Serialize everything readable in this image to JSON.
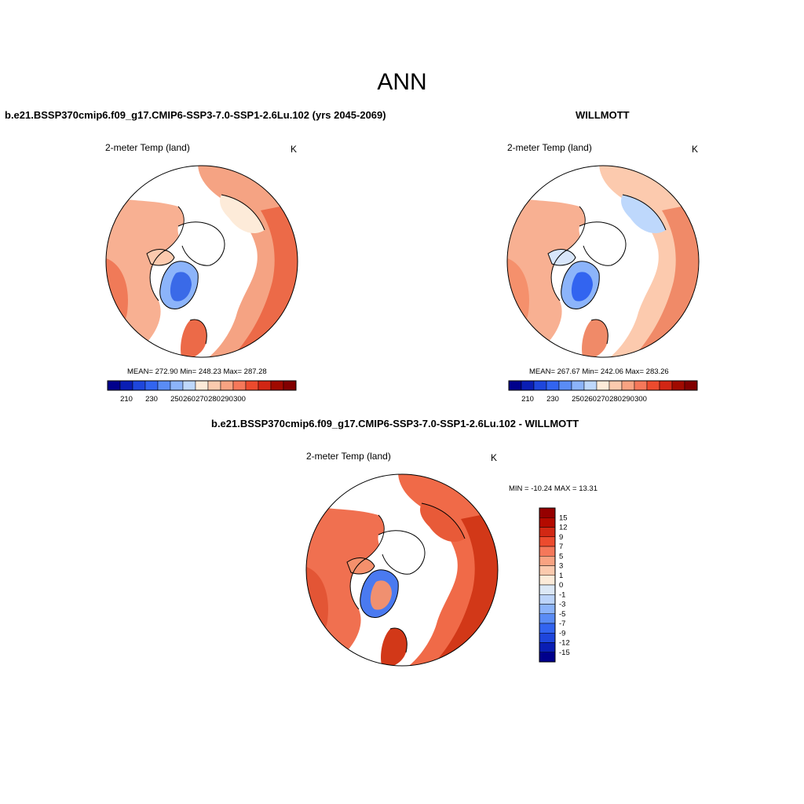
{
  "page_title": "ANN",
  "panels": [
    {
      "id": "model",
      "title": "b.e21.BSSP370cmip6.f09_g17.CMIP6-SSP3-7.0-SSP1-2.6Lu.102 (yrs 2045-2069)",
      "field": "2-meter Temp (land)",
      "units": "K",
      "stats": "MEAN= 272.90   Min= 248.23   Max= 287.28",
      "map_style": "model"
    },
    {
      "id": "obs",
      "title": "WILLMOTT",
      "field": "2-meter Temp (land)",
      "units": "K",
      "stats": "MEAN= 267.67   Min= 242.06   Max= 283.26",
      "map_style": "obs"
    },
    {
      "id": "diff",
      "title": "b.e21.BSSP370cmip6.f09_g17.CMIP6-SSP3-7.0-SSP1-2.6Lu.102 - WILLMOTT",
      "field": "2-meter Temp (land)",
      "units": "K",
      "stats": "MIN = -10.24 MAX =  13.31",
      "map_style": "diff"
    }
  ],
  "abs_colorbar": {
    "colors": [
      "#00008c",
      "#0a1eb4",
      "#1e46dc",
      "#3264f0",
      "#5a8cf5",
      "#8cb4fa",
      "#bed8fc",
      "#fdebd9",
      "#fccaae",
      "#f9a382",
      "#f5785a",
      "#ec4b2e",
      "#d22614",
      "#a00a00",
      "#820000"
    ],
    "tick_labels": [
      "210",
      "230",
      "250",
      "260",
      "270",
      "280",
      "290",
      "300"
    ]
  },
  "diff_colorbar": {
    "colors_top_to_bottom": [
      "#960000",
      "#b40a00",
      "#d22814",
      "#ec4b2e",
      "#f5785a",
      "#f9a382",
      "#fccaae",
      "#fdebd9",
      "#dce8f6",
      "#bcd4fa",
      "#8cb4fa",
      "#5a8cf5",
      "#3264f0",
      "#1e46dc",
      "#0a1eb4",
      "#00008c"
    ],
    "tick_labels": [
      "15",
      "12",
      "9",
      "7",
      "5",
      "3",
      "1",
      "0",
      "-1",
      "-3",
      "-5",
      "-7",
      "-9",
      "-12",
      "-15"
    ]
  }
}
